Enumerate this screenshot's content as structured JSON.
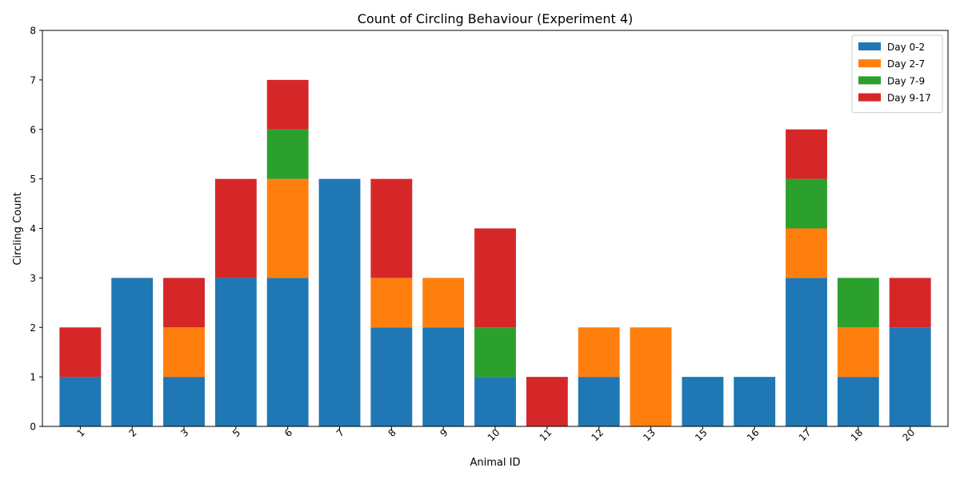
{
  "chart_data": {
    "type": "bar",
    "stacked": true,
    "title": "Count of Circling Behaviour (Experiment 4)",
    "xlabel": "Animal ID",
    "ylabel": "Circling Count",
    "categories": [
      "1",
      "2",
      "3",
      "5",
      "6",
      "7",
      "8",
      "9",
      "10",
      "11",
      "12",
      "13",
      "15",
      "16",
      "17",
      "18",
      "20"
    ],
    "ylim": [
      0,
      8
    ],
    "yticks": [
      0,
      1,
      2,
      3,
      4,
      5,
      6,
      7,
      8
    ],
    "x_tick_rotation_deg": 45,
    "grid": false,
    "legend_position": "top-right",
    "series": [
      {
        "name": "Day 0-2",
        "color": "#1f77b4",
        "values": [
          1,
          3,
          1,
          3,
          3,
          5,
          2,
          2,
          1,
          0,
          1,
          0,
          1,
          1,
          3,
          1,
          2
        ]
      },
      {
        "name": "Day 2-7",
        "color": "#ff7f0e",
        "values": [
          0,
          0,
          1,
          0,
          2,
          0,
          1,
          1,
          0,
          0,
          1,
          2,
          0,
          0,
          1,
          1,
          0
        ]
      },
      {
        "name": "Day 7-9",
        "color": "#2ca02c",
        "values": [
          0,
          0,
          0,
          0,
          1,
          0,
          0,
          0,
          1,
          0,
          0,
          0,
          0,
          0,
          1,
          1,
          0
        ]
      },
      {
        "name": "Day 9-17",
        "color": "#d62728",
        "values": [
          1,
          0,
          1,
          2,
          1,
          0,
          2,
          0,
          2,
          1,
          0,
          0,
          0,
          0,
          1,
          0,
          1
        ]
      }
    ]
  }
}
